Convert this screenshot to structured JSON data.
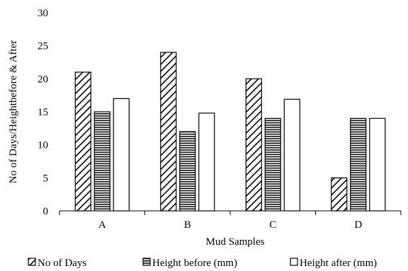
{
  "chart_data": {
    "type": "bar",
    "title": "",
    "xlabel": "Mud Samples",
    "ylabel": "No of Days/Heightbefore & After",
    "categories": [
      "A",
      "B",
      "C",
      "D"
    ],
    "ylim": [
      0,
      30
    ],
    "yticks": [
      0,
      5,
      10,
      15,
      20,
      25,
      30
    ],
    "grid": false,
    "legend": "bottom",
    "series": [
      {
        "name": "No of Days",
        "values": [
          21,
          24,
          20,
          5
        ],
        "pattern": "diagonal-hatch"
      },
      {
        "name": "Height before (mm)",
        "values": [
          15,
          12,
          14,
          14
        ],
        "pattern": "horizontal-lines"
      },
      {
        "name": "Height after (mm)",
        "values": [
          17,
          14.8,
          16.9,
          14
        ],
        "pattern": "solid-white"
      }
    ],
    "colors": {
      "stroke": "#000000",
      "fill": "#ffffff"
    }
  }
}
